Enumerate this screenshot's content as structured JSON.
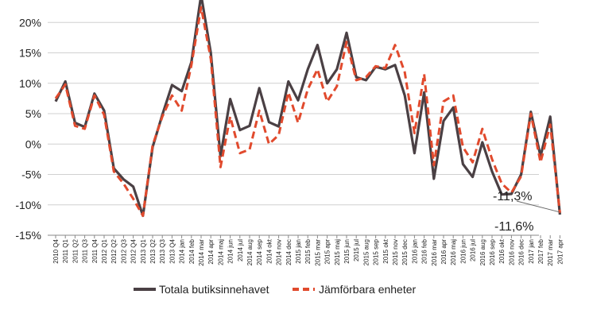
{
  "chart_data": {
    "type": "line",
    "title": "",
    "xlabel": "",
    "ylabel": "",
    "ylim": [
      -15,
      25
    ],
    "yticks": [
      -15,
      -10,
      -5,
      0,
      5,
      10,
      15,
      20
    ],
    "ytick_labels": [
      "-15%",
      "-10%",
      "-5%",
      "0%",
      "5%",
      "10%",
      "15%",
      "20%"
    ],
    "grid": true,
    "legend_position": "bottom",
    "categories": [
      "2010 Q4",
      "2011 Q1",
      "2011 Q2",
      "2011 Q3",
      "2011 Q4",
      "2012 Q1",
      "2012 Q2",
      "2012 Q3",
      "2012 Q4",
      "2013 Q1",
      "2013 Q2",
      "2013 Q3",
      "2013 Q4",
      "2014 jan",
      "2014 feb",
      "2014 mar",
      "2014 apr",
      "2014 maj",
      "2014 jun",
      "2014 jul",
      "2014 aug",
      "2014 sep",
      "2014 okt",
      "2014 nov",
      "2014 dec",
      "2015 jan",
      "2015 feb",
      "2015 mar",
      "2015 apr",
      "2015 maj",
      "2015 jun",
      "2015 jul",
      "2015 aug",
      "2015 sep",
      "2015 okt",
      "2015 nov",
      "2015 dec",
      "2016 jan",
      "2016 feb",
      "2016 mar",
      "2016 apr",
      "2016 maj",
      "2016 jun",
      "2016 jul",
      "2016 aug",
      "2016 sep",
      "2016 okt",
      "2016 nov",
      "2016 dec",
      "2017 jan",
      "2017 feb",
      "2017 mar",
      "2017 apr"
    ],
    "series": [
      {
        "name": "Totala butiksinnehavet",
        "color": "#4a4044",
        "dash": "solid",
        "values": [
          7.0,
          10.3,
          3.5,
          2.8,
          8.3,
          5.5,
          -4.0,
          -5.8,
          -7.0,
          -11.8,
          -0.5,
          4.8,
          9.7,
          8.7,
          13.5,
          24.5,
          15.0,
          -2.0,
          7.4,
          2.3,
          3.0,
          9.2,
          3.6,
          2.9,
          10.3,
          7.2,
          12.3,
          16.3,
          10.0,
          12.3,
          18.3,
          11.0,
          10.5,
          12.7,
          12.3,
          13.0,
          8.0,
          -1.5,
          8.5,
          -5.7,
          3.8,
          6.0,
          -3.3,
          -5.4,
          0.3,
          -4.5,
          -8.3,
          -8.2,
          -5.0,
          5.3,
          -2.0,
          4.5,
          -11.6
        ]
      },
      {
        "name": "Jämförbara enheter",
        "color": "#e14a2d",
        "dash": "dashed",
        "values": [
          7.5,
          9.8,
          3.0,
          2.5,
          8.0,
          4.8,
          -4.5,
          -6.5,
          -9.0,
          -11.8,
          -0.2,
          4.5,
          8.0,
          5.5,
          13.0,
          22.5,
          14.0,
          -3.8,
          4.5,
          -1.5,
          -0.9,
          5.5,
          0.0,
          1.5,
          8.5,
          3.5,
          9.0,
          12.3,
          7.0,
          9.5,
          16.8,
          10.5,
          11.0,
          12.8,
          12.5,
          16.3,
          11.8,
          1.8,
          11.5,
          -3.5,
          7.0,
          8.0,
          -0.5,
          -3.0,
          2.5,
          -2.5,
          -6.5,
          -8.0,
          -5.3,
          5.0,
          -3.0,
          3.2,
          -11.3
        ]
      }
    ],
    "annotations": [
      {
        "text": "-11,3%",
        "series": 1,
        "index": 52
      },
      {
        "text": "-11,6%",
        "series": 0,
        "index": 52
      }
    ]
  },
  "legend": {
    "items": [
      {
        "label": "Totala butiksinnehavet"
      },
      {
        "label": "Jämförbara enheter"
      }
    ]
  }
}
